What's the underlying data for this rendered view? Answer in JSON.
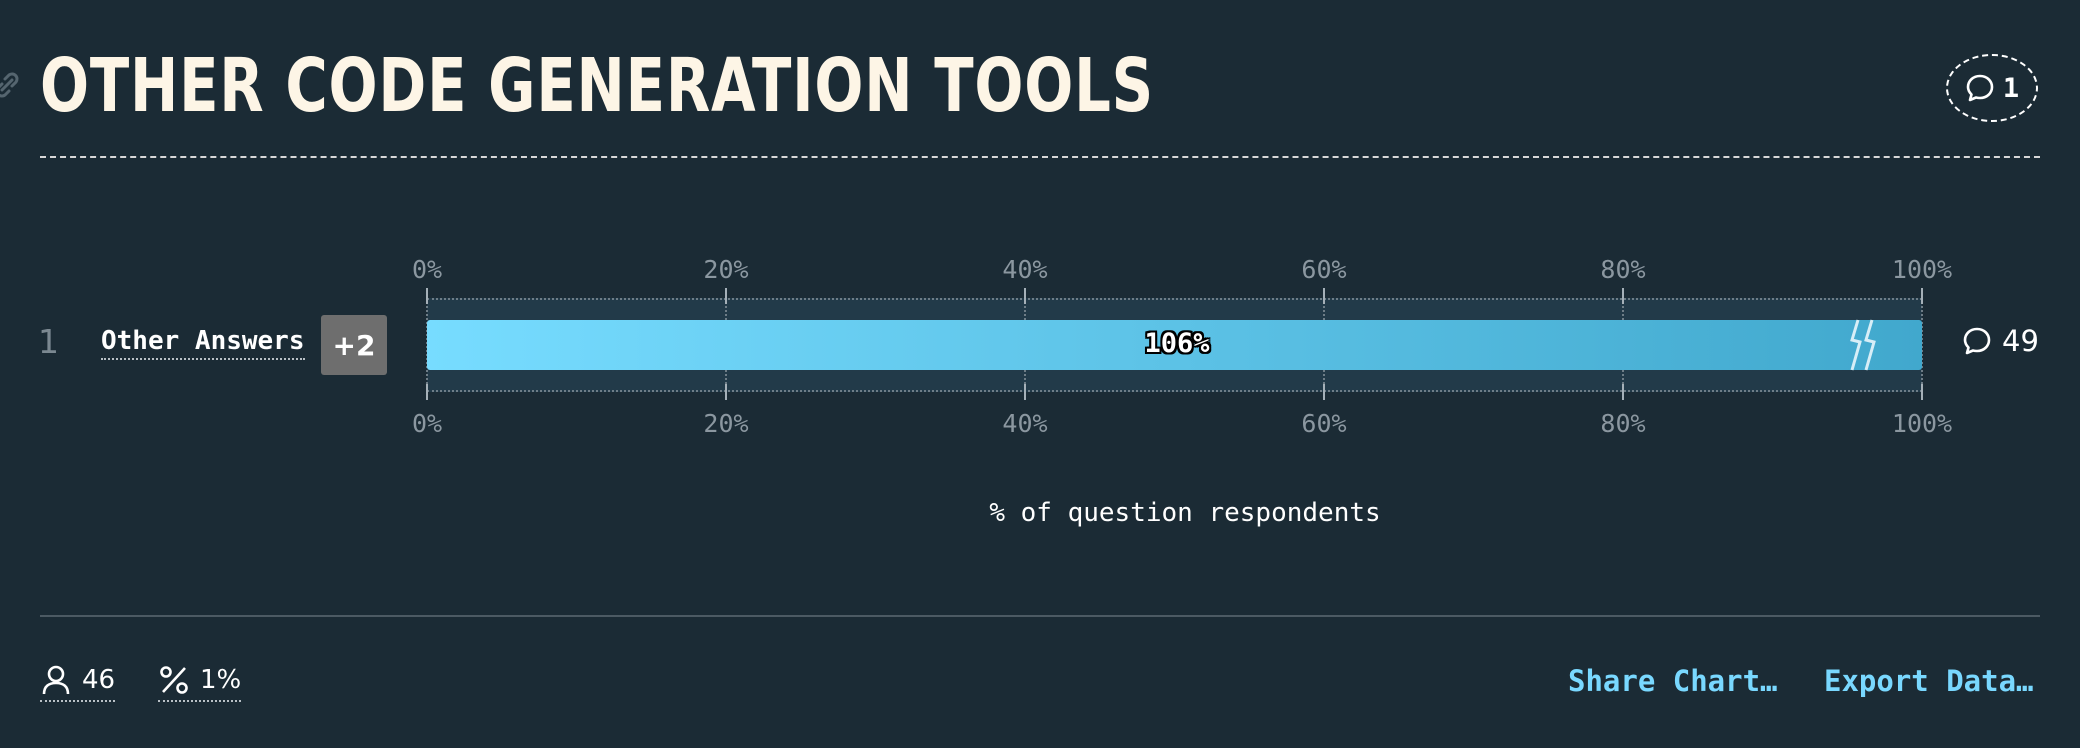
{
  "header": {
    "title": "OTHER CODE GENERATION TOOLS",
    "comment_count": "1"
  },
  "chart_data": {
    "type": "bar",
    "orientation": "horizontal",
    "xlabel": "% of question respondents",
    "xlim": [
      0,
      100
    ],
    "x_ticks": [
      "0%",
      "20%",
      "40%",
      "60%",
      "80%",
      "100%"
    ],
    "categories": [
      "Other Answers"
    ],
    "ranks": [
      "1"
    ],
    "values": [
      106
    ],
    "value_labels": [
      "106%"
    ],
    "extra_badges": [
      "+2"
    ],
    "comment_counts": [
      "49"
    ],
    "bar_colors": [
      "#77dcff",
      "#41a8cd"
    ],
    "bar_truncated": true,
    "grid": true
  },
  "footer": {
    "respondents": "46",
    "percentage": "1%",
    "share_label": "Share Chart…",
    "export_label": "Export Data…"
  },
  "colors": {
    "background": "#1b2b35",
    "title": "#fdf5e6",
    "accent": "#79d8ff"
  }
}
